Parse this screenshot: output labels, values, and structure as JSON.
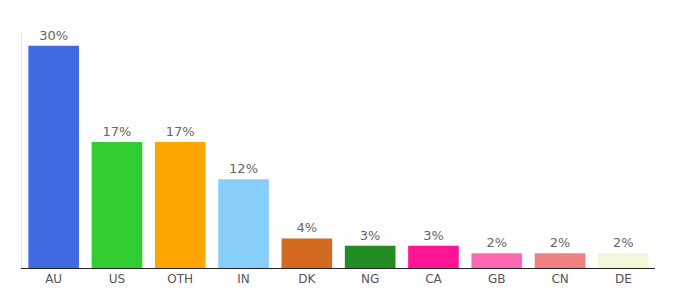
{
  "chart_data": {
    "type": "bar",
    "categories": [
      "AU",
      "US",
      "OTH",
      "IN",
      "DK",
      "NG",
      "CA",
      "GB",
      "CN",
      "DE"
    ],
    "values": [
      30,
      17,
      17,
      12,
      4,
      3,
      3,
      2,
      2,
      2
    ],
    "value_labels": [
      "30%",
      "17%",
      "17%",
      "12%",
      "4%",
      "3%",
      "3%",
      "2%",
      "2%",
      "2%"
    ],
    "colors": [
      "#4169e1",
      "#32cd32",
      "#ffa500",
      "#87cefa",
      "#d2691e",
      "#228b22",
      "#ff1493",
      "#ff69b4",
      "#f08080",
      "#f5f5dc"
    ],
    "ylim": [
      0,
      32
    ],
    "data_labels": true,
    "tick_labels": "x",
    "grid": false
  }
}
